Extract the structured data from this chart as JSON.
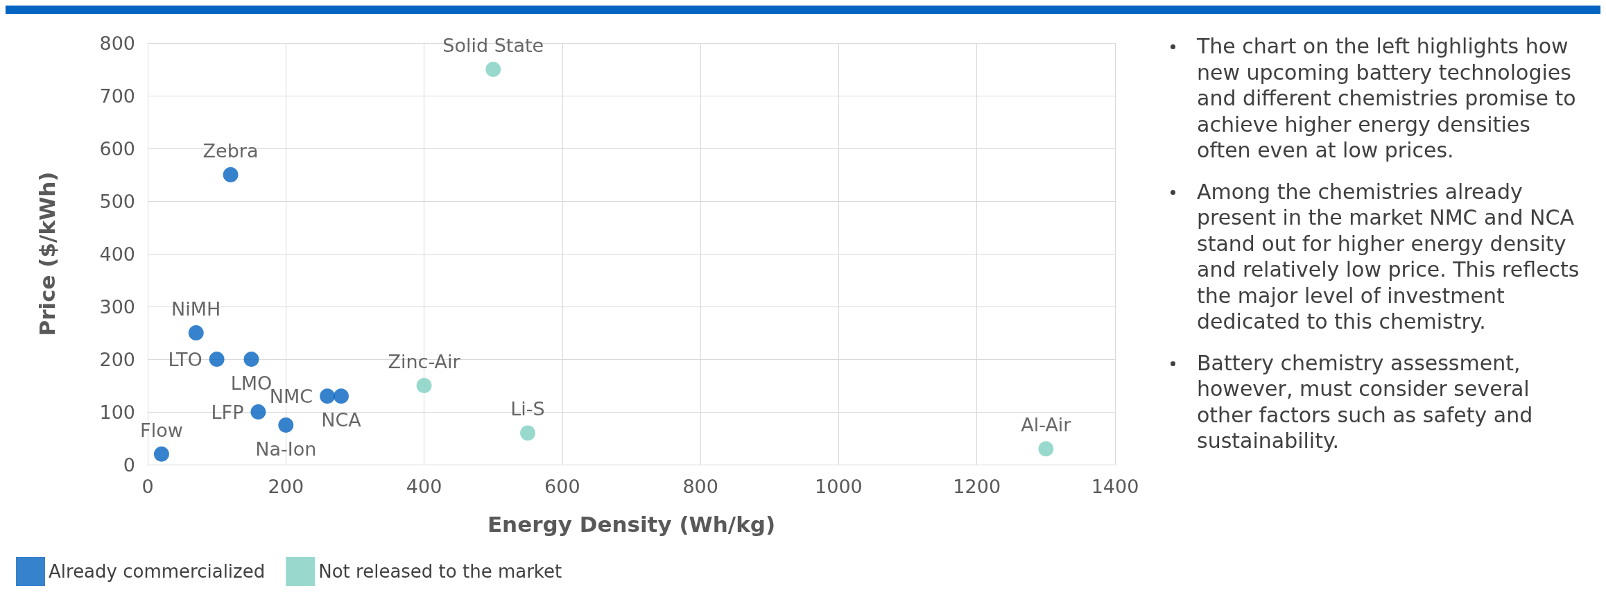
{
  "chart_data": {
    "type": "scatter",
    "xlabel": "Energy Density (Wh/kg)",
    "ylabel": "Price ($/kWh)",
    "xlim": [
      0,
      1400
    ],
    "xticks": [
      0,
      200,
      400,
      600,
      800,
      1000,
      1200,
      1400
    ],
    "ylim": [
      0,
      800
    ],
    "yticks": [
      0,
      100,
      200,
      300,
      400,
      500,
      600,
      700,
      800
    ],
    "grid": true,
    "legend": "bottom left",
    "marker": "circle",
    "series": [
      {
        "name": "Already commercialized",
        "color": "#0563c1",
        "x": [
          120,
          70,
          100,
          150,
          260,
          280,
          160,
          200,
          20
        ],
        "values": [
          550,
          250,
          200,
          200,
          130,
          130,
          100,
          75,
          20
        ],
        "value_labels": [
          "Zebra",
          "NiMH",
          "LTO",
          "LMO",
          "NMC",
          "NCA",
          "LFP",
          "Na-Ion",
          "Flow"
        ]
      },
      {
        "name": "Not released to the market",
        "color": "#7fcfc0",
        "x": [
          500,
          400,
          550,
          1300
        ],
        "values": [
          750,
          150,
          60,
          30
        ],
        "value_labels": [
          "Solid State",
          "Zinc-Air",
          "Li-S",
          "Al-Air"
        ]
      }
    ],
    "annotations": [
      "The chart on the left highlights how new upcoming battery technologies and different chemistries promise to achieve higher energy densities often even at low prices.",
      "Among the chemistries already present in the market NMC and NCA stand out for higher energy density and relatively low price. This reflects the major level of investment dedicated to this chemistry.",
      "Battery chemistry assessment, however, must consider several other factors such as safety and sustainability."
    ]
  }
}
